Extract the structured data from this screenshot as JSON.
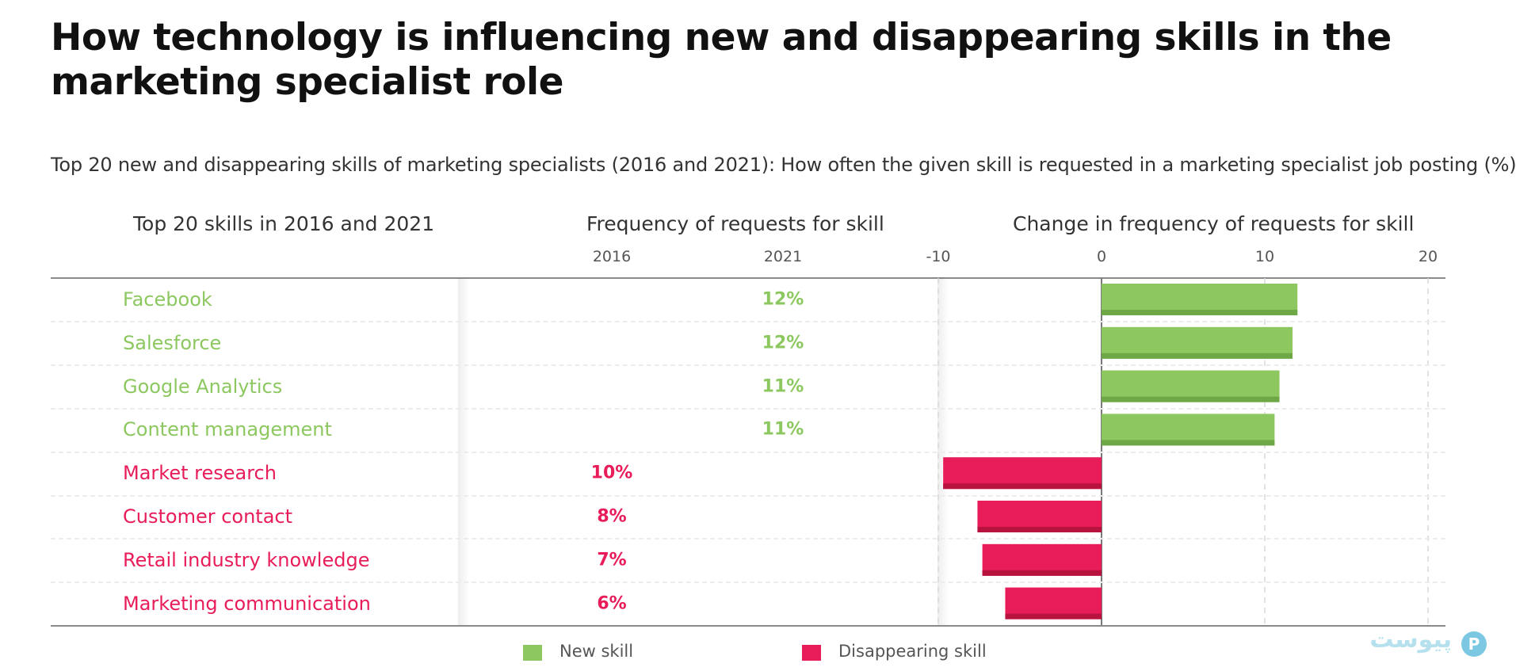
{
  "title": "How technology is influencing new and disappearing skills in the marketing specialist role",
  "subtitle": "Top 20 new and disappearing skills of marketing specialists (2016 and 2021): How often the given skill is requested in a marketing specialist job posting (%)",
  "headers": {
    "skills": "Top 20 skills in 2016 and 2021",
    "frequency": "Frequency of requests for skill",
    "change": "Change in frequency of requests for skill",
    "year_2016": "2016",
    "year_2021": "2021"
  },
  "legend": {
    "new": "New skill",
    "disappearing": "Disappearing skill"
  },
  "colors": {
    "new": "#8cc85f",
    "new_dark": "#6ea846",
    "disappearing": "#e81c59",
    "disappearing_dark": "#b8123f"
  },
  "watermark": {
    "text": "پیوست",
    "badge": "P"
  },
  "chart_data": {
    "type": "bar",
    "orientation": "horizontal",
    "title": "How technology is influencing new and disappearing skills in the marketing specialist role",
    "xlabel": "Change in frequency of requests for skill",
    "xlim": [
      -10,
      20
    ],
    "x_ticks": [
      -10,
      0,
      10,
      20
    ],
    "grid": "vertical dashed at ticks",
    "categories": [
      "Facebook",
      "Salesforce",
      "Google Analytics",
      "Content management",
      "Market research",
      "Customer contact",
      "Retail industry knowledge",
      "Marketing communication"
    ],
    "rows": [
      {
        "skill": "Facebook",
        "type": "new",
        "freq_2016": "",
        "freq_2021": "12%",
        "change": 12
      },
      {
        "skill": "Salesforce",
        "type": "new",
        "freq_2016": "",
        "freq_2021": "12%",
        "change": 11.7
      },
      {
        "skill": "Google Analytics",
        "type": "new",
        "freq_2016": "",
        "freq_2021": "11%",
        "change": 10.9
      },
      {
        "skill": "Content management",
        "type": "new",
        "freq_2016": "",
        "freq_2021": "11%",
        "change": 10.6
      },
      {
        "skill": "Market research",
        "type": "disappearing",
        "freq_2016": "10%",
        "freq_2021": "",
        "change": -9.7
      },
      {
        "skill": "Customer contact",
        "type": "disappearing",
        "freq_2016": "8%",
        "freq_2021": "",
        "change": -7.6
      },
      {
        "skill": "Retail industry knowledge",
        "type": "disappearing",
        "freq_2016": "7%",
        "freq_2021": "",
        "change": -7.3
      },
      {
        "skill": "Marketing communication",
        "type": "disappearing",
        "freq_2016": "6%",
        "freq_2021": "",
        "change": -5.9
      }
    ],
    "legend": [
      "New skill",
      "Disappearing skill"
    ],
    "legend_position": "bottom-center"
  }
}
